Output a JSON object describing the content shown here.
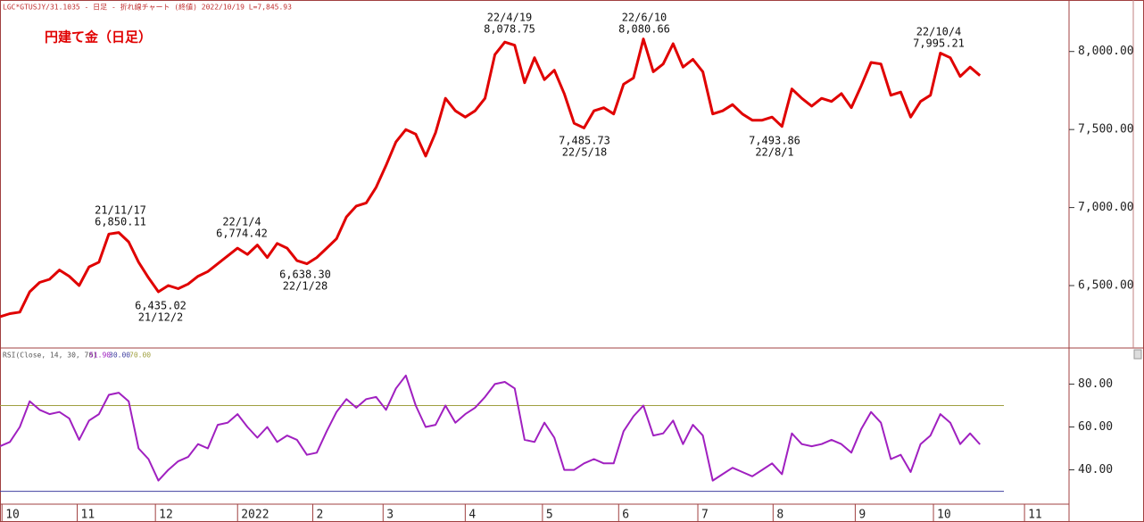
{
  "header": "LGC*GTUSJY/31.1035 - 日足 - 折れ線チャート (終値)  2022/10/19 L=7,845.93",
  "chart_data": [
    {
      "type": "line",
      "title": "円建て金（日足）",
      "series": [
        {
          "color": "#e00000",
          "values": [
            6300,
            6320,
            6330,
            6460,
            6520,
            6540,
            6600,
            6560,
            6500,
            6620,
            6650,
            6830,
            6840,
            6780,
            6650,
            6550,
            6460,
            6500,
            6480,
            6510,
            6560,
            6590,
            6640,
            6690,
            6740,
            6700,
            6760,
            6680,
            6770,
            6740,
            6660,
            6640,
            6680,
            6740,
            6800,
            6940,
            7010,
            7030,
            7130,
            7270,
            7420,
            7500,
            7470,
            7330,
            7480,
            7700,
            7620,
            7580,
            7620,
            7700,
            7980,
            8060,
            8040,
            7800,
            7960,
            7820,
            7880,
            7730,
            7540,
            7510,
            7620,
            7640,
            7600,
            7790,
            7830,
            8080,
            7870,
            7920,
            8050,
            7900,
            7950,
            7870,
            7600,
            7620,
            7660,
            7600,
            7560,
            7560,
            7580,
            7520,
            7760,
            7700,
            7650,
            7700,
            7680,
            7730,
            7640,
            7780,
            7930,
            7920,
            7720,
            7740,
            7580,
            7680,
            7720,
            7990,
            7960,
            7840,
            7900,
            7845.93
          ]
        }
      ],
      "xlim": [
        0,
        108
      ],
      "ylim": [
        6100,
        8330
      ],
      "yticks": [
        {
          "value": 6500,
          "label": "6,500.00"
        },
        {
          "value": 7000,
          "label": "7,000.00"
        },
        {
          "value": 7500,
          "label": "7,500.00"
        },
        {
          "value": 8000,
          "label": "8,000.00"
        }
      ],
      "annotations": [
        [
          "21/11/17",
          "6,850.11"
        ],
        [
          "6,435.02",
          "21/12/2"
        ],
        [
          "22/1/4",
          "6,774.42"
        ],
        [
          "6,638.30",
          "22/1/28"
        ],
        [
          "22/4/19",
          "8,078.75"
        ],
        [
          "7,485.73",
          "22/5/18"
        ],
        [
          "22/6/10",
          "8,080.66"
        ],
        [
          "7,493.86",
          "22/8/1"
        ],
        [
          "22/10/4",
          "7,995.21"
        ]
      ]
    },
    {
      "type": "line",
      "title": "RSI(Close, 14, 30, 70)",
      "series": [
        {
          "name": "51.90",
          "color": "#a020c0",
          "values": [
            51,
            53,
            60,
            72,
            68,
            66,
            67,
            64,
            54,
            63,
            66,
            75,
            76,
            72,
            50,
            45,
            35,
            40,
            44,
            46,
            52,
            50,
            61,
            62,
            66,
            60,
            55,
            60,
            53,
            56,
            54,
            47,
            48,
            58,
            67,
            73,
            69,
            73,
            74,
            68,
            78,
            84,
            70,
            60,
            61,
            70,
            62,
            66,
            69,
            74,
            80,
            81,
            78,
            54,
            53,
            62,
            55,
            40,
            40,
            43,
            45,
            43,
            43,
            58,
            65,
            70,
            56,
            57,
            63,
            52,
            61,
            56,
            35,
            38,
            41,
            39,
            37,
            40,
            43,
            38,
            57,
            52,
            51,
            52,
            54,
            52,
            48,
            59,
            67,
            62,
            45,
            47,
            39,
            52,
            56,
            66,
            62,
            52,
            57,
            51.9
          ]
        }
      ],
      "levels": [
        {
          "value": 30,
          "label": "30.00",
          "color": "#4040a0"
        },
        {
          "value": 70,
          "label": "70.00",
          "color": "#a0a040"
        }
      ],
      "xlim": [
        0,
        108
      ],
      "ylim": [
        24,
        96
      ],
      "yticks": [
        {
          "value": 40,
          "label": "40.00"
        },
        {
          "value": 60,
          "label": "60.00"
        },
        {
          "value": 80,
          "label": "80.00"
        }
      ],
      "xticks": [
        {
          "value": 0.2,
          "label": "10"
        },
        {
          "value": 7.8,
          "label": "11"
        },
        {
          "value": 15.7,
          "label": "12"
        },
        {
          "value": 24,
          "label": "2022"
        },
        {
          "value": 31.6,
          "label": "2"
        },
        {
          "value": 38.7,
          "label": "3"
        },
        {
          "value": 47,
          "label": "4"
        },
        {
          "value": 54.8,
          "label": "5"
        },
        {
          "value": 62.5,
          "label": "6"
        },
        {
          "value": 70.5,
          "label": "7"
        },
        {
          "value": 78.1,
          "label": "8"
        },
        {
          "value": 86.4,
          "label": "9"
        },
        {
          "value": 94.3,
          "label": "10"
        },
        {
          "value": 103.5,
          "label": "11"
        }
      ]
    }
  ]
}
